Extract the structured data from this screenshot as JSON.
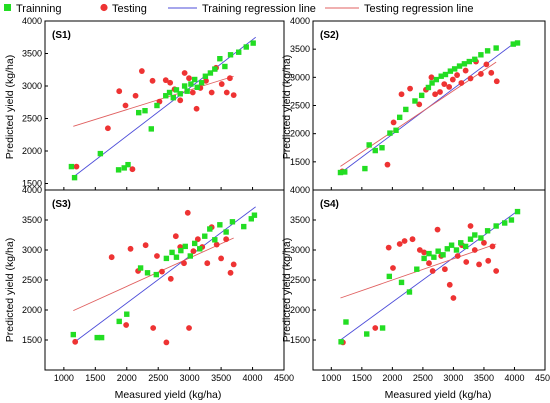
{
  "colors": {
    "training": "#22dd22",
    "testing": "#ee3333",
    "training_line": "#4d4dd9",
    "testing_line": "#e06060"
  },
  "legend": {
    "training": "Trainning",
    "testing": "Testing",
    "training_line": "Training regression line",
    "testing_line": "Testing regression line"
  },
  "x_label": "Measured yield (kg/ha)",
  "y_label": "Predicted yield (kg/ha)",
  "chart_data": [
    {
      "type": "scatter",
      "panel": "(S1)",
      "xlim": [
        700,
        4500
      ],
      "ylim": [
        1400,
        4000
      ],
      "x_ticks": [
        1000,
        1500,
        2000,
        2500,
        3000,
        3500,
        4000,
        4500
      ],
      "y_ticks": [
        1500,
        2000,
        2500,
        3000,
        3500,
        4000
      ],
      "training": [
        [
          1120,
          1760
        ],
        [
          1170,
          1590
        ],
        [
          1580,
          1960
        ],
        [
          1870,
          1710
        ],
        [
          1960,
          1740
        ],
        [
          2020,
          1790
        ],
        [
          2190,
          2590
        ],
        [
          2290,
          2620
        ],
        [
          2390,
          2340
        ],
        [
          2480,
          2700
        ],
        [
          2620,
          2850
        ],
        [
          2680,
          2900
        ],
        [
          2740,
          2820
        ],
        [
          2790,
          2940
        ],
        [
          2850,
          2880
        ],
        [
          2920,
          3000
        ],
        [
          2960,
          2920
        ],
        [
          3020,
          3030
        ],
        [
          3080,
          3100
        ],
        [
          3120,
          2980
        ],
        [
          3190,
          3050
        ],
        [
          3250,
          3150
        ],
        [
          3330,
          3200
        ],
        [
          3400,
          3260
        ],
        [
          3480,
          3420
        ],
        [
          3560,
          3300
        ],
        [
          3650,
          3480
        ],
        [
          3780,
          3520
        ],
        [
          3900,
          3600
        ],
        [
          4010,
          3660
        ]
      ],
      "testing": [
        [
          1200,
          1760
        ],
        [
          1700,
          2350
        ],
        [
          1880,
          2920
        ],
        [
          1980,
          2700
        ],
        [
          2090,
          1720
        ],
        [
          2140,
          2850
        ],
        [
          2240,
          3230
        ],
        [
          2410,
          3080
        ],
        [
          2520,
          2760
        ],
        [
          2620,
          3090
        ],
        [
          2690,
          3050
        ],
        [
          2760,
          2950
        ],
        [
          2850,
          2780
        ],
        [
          2920,
          3200
        ],
        [
          2990,
          3120
        ],
        [
          3050,
          2900
        ],
        [
          3110,
          2650
        ],
        [
          3170,
          2970
        ],
        [
          3260,
          3080
        ],
        [
          3350,
          2900
        ],
        [
          3420,
          3280
        ],
        [
          3510,
          3030
        ],
        [
          3590,
          2900
        ],
        [
          3640,
          3120
        ],
        [
          3700,
          2860
        ]
      ],
      "training_fit": [
        [
          1150,
          1600
        ],
        [
          4050,
          3750
        ]
      ],
      "testing_fit": [
        [
          1150,
          2380
        ],
        [
          3700,
          3150
        ]
      ]
    },
    {
      "type": "scatter",
      "panel": "(S2)",
      "xlim": [
        700,
        4500
      ],
      "ylim": [
        1000,
        4000
      ],
      "x_ticks": [
        1000,
        1500,
        2000,
        2500,
        3000,
        3500,
        4000,
        4500
      ],
      "y_ticks": [
        1500,
        2000,
        2500,
        3000,
        3500,
        4000
      ],
      "training": [
        [
          1150,
          1310
        ],
        [
          1220,
          1320
        ],
        [
          1550,
          1380
        ],
        [
          1620,
          1800
        ],
        [
          1720,
          1700
        ],
        [
          1830,
          1750
        ],
        [
          1960,
          2010
        ],
        [
          2060,
          2060
        ],
        [
          2120,
          2290
        ],
        [
          2220,
          2430
        ],
        [
          2370,
          2580
        ],
        [
          2480,
          2680
        ],
        [
          2590,
          2820
        ],
        [
          2650,
          2900
        ],
        [
          2720,
          2960
        ],
        [
          2800,
          3020
        ],
        [
          2870,
          3050
        ],
        [
          2950,
          3110
        ],
        [
          3020,
          3150
        ],
        [
          3100,
          3200
        ],
        [
          3180,
          3240
        ],
        [
          3260,
          3280
        ],
        [
          3350,
          3320
        ],
        [
          3450,
          3400
        ],
        [
          3560,
          3470
        ],
        [
          3700,
          3520
        ],
        [
          3980,
          3590
        ],
        [
          4050,
          3610
        ]
      ],
      "testing": [
        [
          1180,
          1330
        ],
        [
          1920,
          1450
        ],
        [
          2020,
          2200
        ],
        [
          2150,
          2700
        ],
        [
          2290,
          2800
        ],
        [
          2440,
          2520
        ],
        [
          2550,
          2780
        ],
        [
          2640,
          3000
        ],
        [
          2700,
          2700
        ],
        [
          2780,
          2740
        ],
        [
          2850,
          2880
        ],
        [
          2930,
          2830
        ],
        [
          2990,
          2960
        ],
        [
          3060,
          3040
        ],
        [
          3130,
          2900
        ],
        [
          3200,
          3120
        ],
        [
          3280,
          2980
        ],
        [
          3370,
          3280
        ],
        [
          3450,
          3060
        ],
        [
          3540,
          3230
        ],
        [
          3620,
          3080
        ],
        [
          3710,
          2930
        ]
      ],
      "training_fit": [
        [
          1150,
          1300
        ],
        [
          4050,
          3650
        ]
      ],
      "testing_fit": [
        [
          1150,
          1420
        ],
        [
          3700,
          3270
        ]
      ]
    },
    {
      "type": "scatter",
      "panel": "(S3)",
      "xlim": [
        700,
        4500
      ],
      "ylim": [
        1000,
        4000
      ],
      "x_ticks": [
        1000,
        1500,
        2000,
        2500,
        3000,
        3500,
        4000,
        4500
      ],
      "y_ticks": [
        1500,
        2000,
        2500,
        3000,
        3500,
        4000
      ],
      "training": [
        [
          1150,
          1590
        ],
        [
          1530,
          1540
        ],
        [
          1600,
          1540
        ],
        [
          1880,
          1810
        ],
        [
          2000,
          1930
        ],
        [
          2220,
          2700
        ],
        [
          2330,
          2620
        ],
        [
          2470,
          2590
        ],
        [
          2630,
          2860
        ],
        [
          2720,
          2960
        ],
        [
          2790,
          2880
        ],
        [
          2860,
          2990
        ],
        [
          2930,
          3060
        ],
        [
          3010,
          2900
        ],
        [
          3080,
          3110
        ],
        [
          3160,
          3020
        ],
        [
          3240,
          3230
        ],
        [
          3320,
          3350
        ],
        [
          3400,
          3170
        ],
        [
          3480,
          3420
        ],
        [
          3580,
          3300
        ],
        [
          3680,
          3470
        ],
        [
          3860,
          3390
        ],
        [
          3980,
          3520
        ],
        [
          4030,
          3580
        ]
      ],
      "testing": [
        [
          1180,
          1470
        ],
        [
          1760,
          2880
        ],
        [
          1990,
          1750
        ],
        [
          2060,
          3020
        ],
        [
          2180,
          2650
        ],
        [
          2300,
          3080
        ],
        [
          2420,
          1700
        ],
        [
          2480,
          2900
        ],
        [
          2560,
          2640
        ],
        [
          2630,
          1460
        ],
        [
          2700,
          2520
        ],
        [
          2780,
          3230
        ],
        [
          2850,
          3050
        ],
        [
          2910,
          2780
        ],
        [
          2970,
          3620
        ],
        [
          2990,
          1700
        ],
        [
          3060,
          2980
        ],
        [
          3130,
          3180
        ],
        [
          3200,
          3050
        ],
        [
          3280,
          2780
        ],
        [
          3350,
          3380
        ],
        [
          3430,
          3090
        ],
        [
          3500,
          2860
        ],
        [
          3580,
          3180
        ],
        [
          3650,
          2620
        ],
        [
          3700,
          2760
        ]
      ],
      "training_fit": [
        [
          1150,
          1450
        ],
        [
          4050,
          3720
        ]
      ],
      "testing_fit": [
        [
          1150,
          1990
        ],
        [
          3700,
          3200
        ]
      ]
    },
    {
      "type": "scatter",
      "panel": "(S4)",
      "xlim": [
        700,
        4500
      ],
      "ylim": [
        1000,
        4000
      ],
      "x_ticks": [
        1000,
        1500,
        2000,
        2500,
        3000,
        3500,
        4000,
        4500
      ],
      "y_ticks": [
        1500,
        2000,
        2500,
        3000,
        3500,
        4000
      ],
      "training": [
        [
          1160,
          1470
        ],
        [
          1240,
          1800
        ],
        [
          1580,
          1600
        ],
        [
          1840,
          1700
        ],
        [
          1950,
          2560
        ],
        [
          2150,
          2460
        ],
        [
          2280,
          2300
        ],
        [
          2400,
          2680
        ],
        [
          2520,
          2860
        ],
        [
          2600,
          2940
        ],
        [
          2680,
          2880
        ],
        [
          2750,
          2980
        ],
        [
          2830,
          2920
        ],
        [
          2900,
          3020
        ],
        [
          2970,
          3080
        ],
        [
          3050,
          3000
        ],
        [
          3120,
          3120
        ],
        [
          3200,
          3060
        ],
        [
          3280,
          3180
        ],
        [
          3350,
          3250
        ],
        [
          3450,
          3200
        ],
        [
          3560,
          3320
        ],
        [
          3700,
          3400
        ],
        [
          3840,
          3450
        ],
        [
          3950,
          3500
        ],
        [
          4050,
          3640
        ]
      ],
      "testing": [
        [
          1190,
          1460
        ],
        [
          1720,
          1700
        ],
        [
          1940,
          3040
        ],
        [
          2010,
          2700
        ],
        [
          2120,
          3100
        ],
        [
          2200,
          3150
        ],
        [
          2330,
          3180
        ],
        [
          2450,
          3000
        ],
        [
          2520,
          2960
        ],
        [
          2600,
          2780
        ],
        [
          2660,
          2650
        ],
        [
          2740,
          3340
        ],
        [
          2800,
          2900
        ],
        [
          2860,
          2680
        ],
        [
          2940,
          2420
        ],
        [
          3000,
          2200
        ],
        [
          3070,
          2900
        ],
        [
          3140,
          3080
        ],
        [
          3210,
          2800
        ],
        [
          3280,
          3400
        ],
        [
          3350,
          3000
        ],
        [
          3420,
          2760
        ],
        [
          3500,
          3120
        ],
        [
          3570,
          2820
        ],
        [
          3640,
          3060
        ],
        [
          3700,
          2650
        ]
      ],
      "training_fit": [
        [
          1150,
          1500
        ],
        [
          4050,
          3650
        ]
      ],
      "testing_fit": [
        [
          1150,
          2200
        ],
        [
          3700,
          3100
        ]
      ]
    }
  ]
}
